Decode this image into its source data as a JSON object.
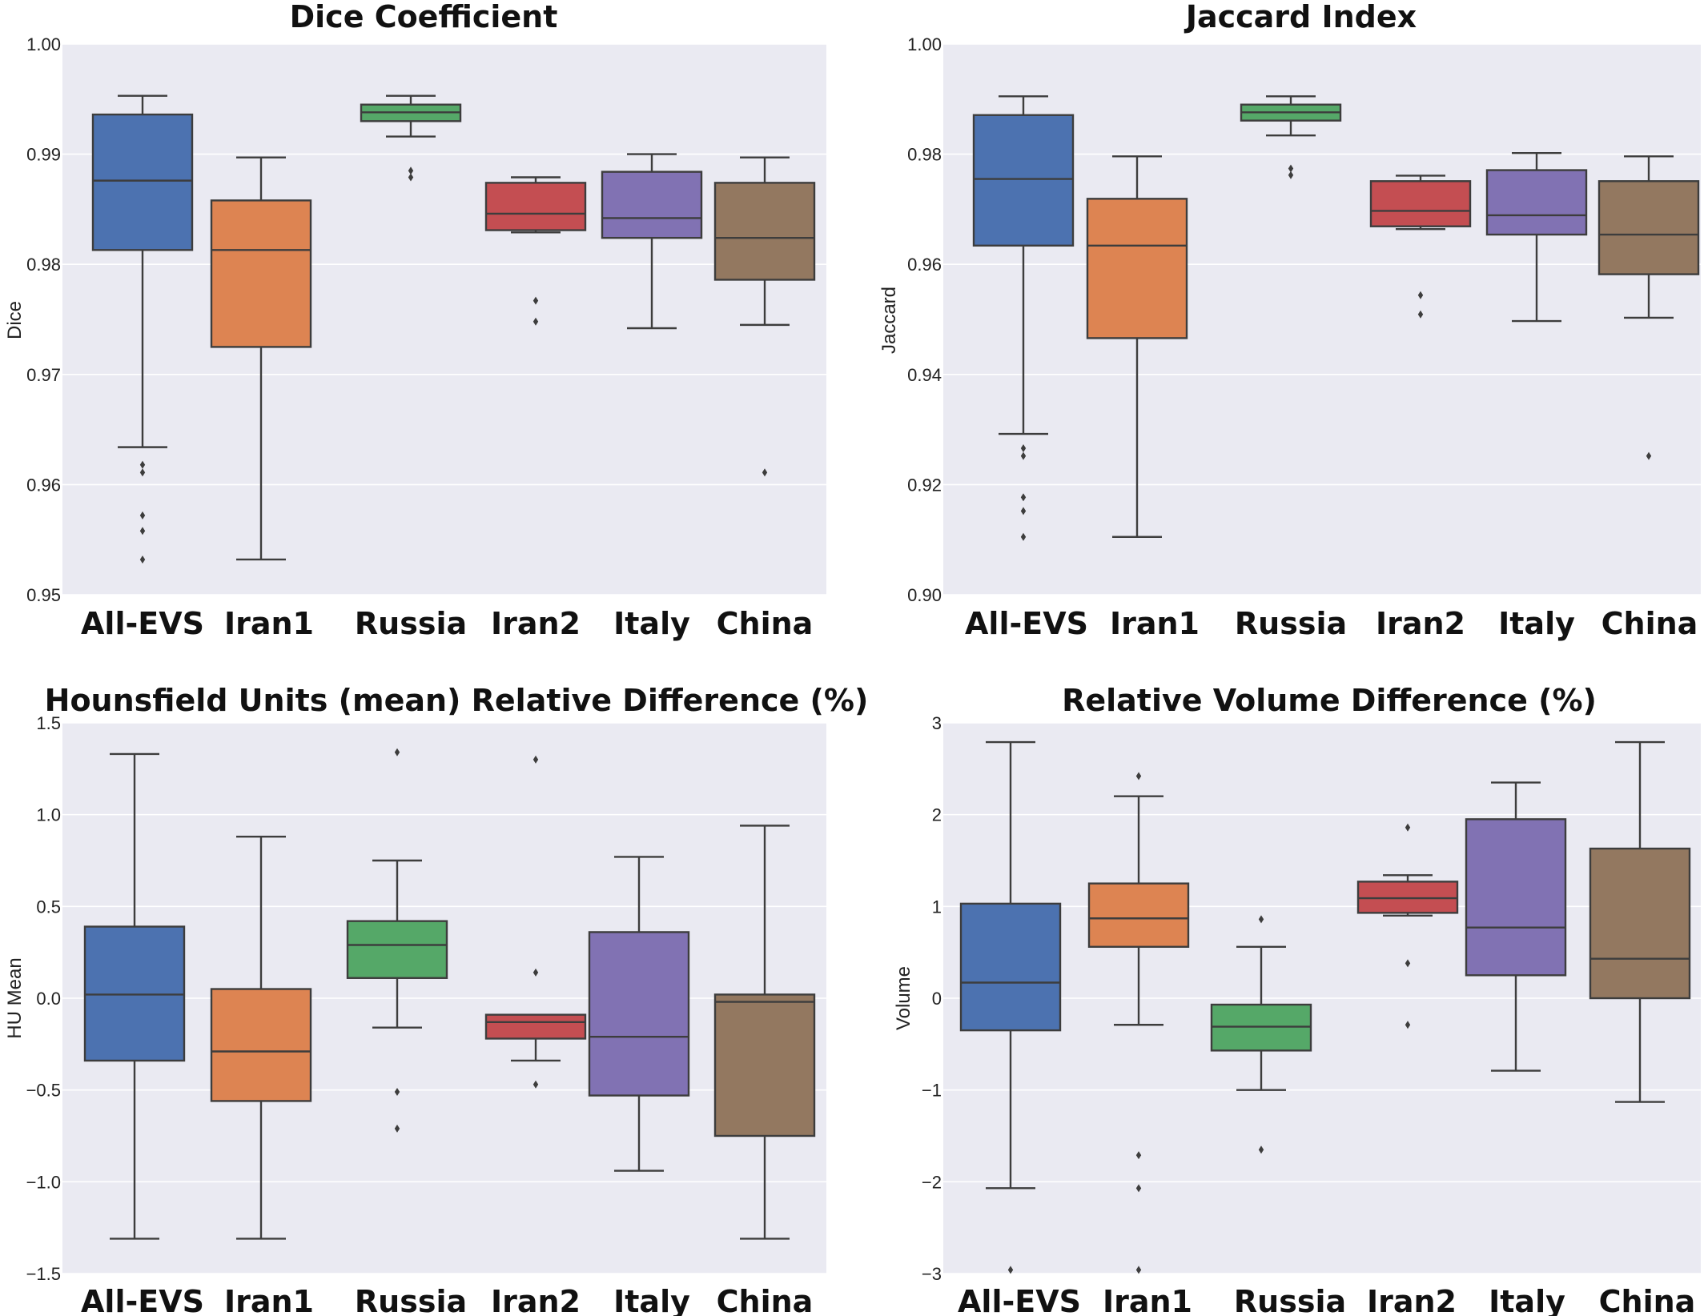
{
  "chart_data": [
    {
      "type": "box",
      "title": "Dice Coefficient",
      "ylabel": "Dice",
      "ylim": [
        0.95,
        1.0
      ],
      "yticks": [
        "0.95",
        "0.96",
        "0.97",
        "0.98",
        "0.99",
        "1.00"
      ],
      "categories": [
        "All-EVS",
        "Iran1",
        "Russia",
        "Iran2",
        "Italy",
        "China"
      ],
      "boxes": [
        {
          "name": "All-EVS",
          "color": "#4c72b0",
          "whisker_low": 0.9634,
          "q1": 0.9813,
          "median": 0.9876,
          "q3": 0.9936,
          "whisker_high": 0.9953,
          "outliers": [
            0.9532,
            0.9558,
            0.9572,
            0.9611,
            0.9618
          ]
        },
        {
          "name": "Iran1",
          "color": "#dd8452",
          "whisker_low": 0.9532,
          "q1": 0.9725,
          "median": 0.9813,
          "q3": 0.9858,
          "whisker_high": 0.9897,
          "outliers": []
        },
        {
          "name": "Russia",
          "color": "#55a868",
          "whisker_low": 0.9916,
          "q1": 0.993,
          "median": 0.9938,
          "q3": 0.9945,
          "whisker_high": 0.9953,
          "outliers": [
            0.9879,
            0.9885
          ]
        },
        {
          "name": "Iran2",
          "color": "#c44e52",
          "whisker_low": 0.9829,
          "q1": 0.9831,
          "median": 0.9846,
          "q3": 0.9874,
          "whisker_high": 0.9879,
          "outliers": [
            0.9748,
            0.9767
          ]
        },
        {
          "name": "Italy",
          "color": "#8172b3",
          "whisker_low": 0.9742,
          "q1": 0.9824,
          "median": 0.9842,
          "q3": 0.9884,
          "whisker_high": 0.99,
          "outliers": []
        },
        {
          "name": "China",
          "color": "#937860",
          "whisker_low": 0.9745,
          "q1": 0.9786,
          "median": 0.9824,
          "q3": 0.9874,
          "whisker_high": 0.9897,
          "outliers": [
            0.9611
          ]
        }
      ]
    },
    {
      "type": "box",
      "title": "Jaccard Index",
      "ylabel": "Jaccard",
      "ylim": [
        0.9,
        1.0
      ],
      "yticks": [
        "0.90",
        "0.92",
        "0.94",
        "0.96",
        "0.98",
        "1.00"
      ],
      "categories": [
        "All-EVS",
        "Iran1",
        "Russia",
        "Iran2",
        "Italy",
        "China"
      ],
      "boxes": [
        {
          "name": "All-EVS",
          "color": "#4c72b0",
          "whisker_low": 0.9292,
          "q1": 0.9634,
          "median": 0.9755,
          "q3": 0.9871,
          "whisker_high": 0.9905,
          "outliers": [
            0.9105,
            0.9152,
            0.9177,
            0.9252,
            0.9266
          ]
        },
        {
          "name": "Iran1",
          "color": "#dd8452",
          "whisker_low": 0.9105,
          "q1": 0.9466,
          "median": 0.9634,
          "q3": 0.9719,
          "whisker_high": 0.9796,
          "outliers": []
        },
        {
          "name": "Russia",
          "color": "#55a868",
          "whisker_low": 0.9834,
          "q1": 0.9861,
          "median": 0.9876,
          "q3": 0.989,
          "whisker_high": 0.9905,
          "outliers": [
            0.9762,
            0.9774
          ]
        },
        {
          "name": "Iran2",
          "color": "#c44e52",
          "whisker_low": 0.9664,
          "q1": 0.9669,
          "median": 0.9697,
          "q3": 0.9751,
          "whisker_high": 0.9761,
          "outliers": [
            0.9509,
            0.9544
          ]
        },
        {
          "name": "Italy",
          "color": "#8172b3",
          "whisker_low": 0.9497,
          "q1": 0.9654,
          "median": 0.9689,
          "q3": 0.9771,
          "whisker_high": 0.9802,
          "outliers": []
        },
        {
          "name": "China",
          "color": "#937860",
          "whisker_low": 0.9503,
          "q1": 0.9582,
          "median": 0.9654,
          "q3": 0.9751,
          "whisker_high": 0.9796,
          "outliers": [
            0.9252
          ]
        }
      ]
    },
    {
      "type": "box",
      "title": "Hounsfield Units (mean) Relative Difference (%)",
      "ylabel": "HU Mean",
      "ylim": [
        -1.5,
        1.5
      ],
      "yticks": [
        "−1.5",
        "−1.0",
        "−0.5",
        "0.0",
        "0.5",
        "1.0",
        "1.5"
      ],
      "categories": [
        "All-EVS",
        "Iran1",
        "Russia",
        "Iran2",
        "Italy",
        "China"
      ],
      "boxes": [
        {
          "name": "All-EVS",
          "color": "#4c72b0",
          "whisker_low": -1.31,
          "q1": -0.34,
          "median": 0.02,
          "q3": 0.39,
          "whisker_high": 1.33,
          "outliers": []
        },
        {
          "name": "Iran1",
          "color": "#dd8452",
          "whisker_low": -1.31,
          "q1": -0.56,
          "median": -0.29,
          "q3": 0.05,
          "whisker_high": 0.88,
          "outliers": []
        },
        {
          "name": "Russia",
          "color": "#55a868",
          "whisker_low": -0.16,
          "q1": 0.11,
          "median": 0.29,
          "q3": 0.42,
          "whisker_high": 0.75,
          "outliers": [
            -0.71,
            -0.51,
            1.34
          ]
        },
        {
          "name": "Iran2",
          "color": "#c44e52",
          "whisker_low": -0.34,
          "q1": -0.22,
          "median": -0.13,
          "q3": -0.09,
          "whisker_high": -0.09,
          "outliers": [
            -0.47,
            0.14,
            1.3
          ]
        },
        {
          "name": "Italy",
          "color": "#8172b3",
          "whisker_low": -0.94,
          "q1": -0.53,
          "median": -0.21,
          "q3": 0.36,
          "whisker_high": 0.77,
          "outliers": []
        },
        {
          "name": "China",
          "color": "#937860",
          "whisker_low": -1.31,
          "q1": -0.75,
          "median": -0.02,
          "q3": 0.02,
          "whisker_high": 0.94,
          "outliers": []
        }
      ]
    },
    {
      "type": "box",
      "title": "Relative Volume Difference (%)",
      "ylabel": "Volume",
      "ylim": [
        -3,
        3
      ],
      "yticks": [
        "−3",
        "−2",
        "−1",
        "0",
        "1",
        "2",
        "3"
      ],
      "categories": [
        "All-EVS",
        "Iran1",
        "Russia",
        "Iran2",
        "Italy",
        "China"
      ],
      "boxes": [
        {
          "name": "All-EVS",
          "color": "#4c72b0",
          "whisker_low": -2.07,
          "q1": -0.35,
          "median": 0.17,
          "q3": 1.03,
          "whisker_high": 2.79,
          "outliers": [
            -2.96
          ]
        },
        {
          "name": "Iran1",
          "color": "#dd8452",
          "whisker_low": -0.29,
          "q1": 0.56,
          "median": 0.87,
          "q3": 1.25,
          "whisker_high": 2.2,
          "outliers": [
            -2.96,
            -2.07,
            -1.71,
            2.42
          ]
        },
        {
          "name": "Russia",
          "color": "#55a868",
          "whisker_low": -1.0,
          "q1": -0.57,
          "median": -0.31,
          "q3": -0.07,
          "whisker_high": 0.56,
          "outliers": [
            -1.65,
            0.86
          ]
        },
        {
          "name": "Iran2",
          "color": "#c44e52",
          "whisker_low": 0.9,
          "q1": 0.93,
          "median": 1.09,
          "q3": 1.27,
          "whisker_high": 1.34,
          "outliers": [
            -0.29,
            0.38,
            1.86
          ]
        },
        {
          "name": "Italy",
          "color": "#8172b3",
          "whisker_low": -0.79,
          "q1": 0.25,
          "median": 0.77,
          "q3": 1.95,
          "whisker_high": 2.35,
          "outliers": []
        },
        {
          "name": "China",
          "color": "#937860",
          "whisker_low": -1.13,
          "q1": 0.0,
          "median": 0.43,
          "q3": 1.63,
          "whisker_high": 2.79,
          "outliers": []
        }
      ]
    }
  ]
}
